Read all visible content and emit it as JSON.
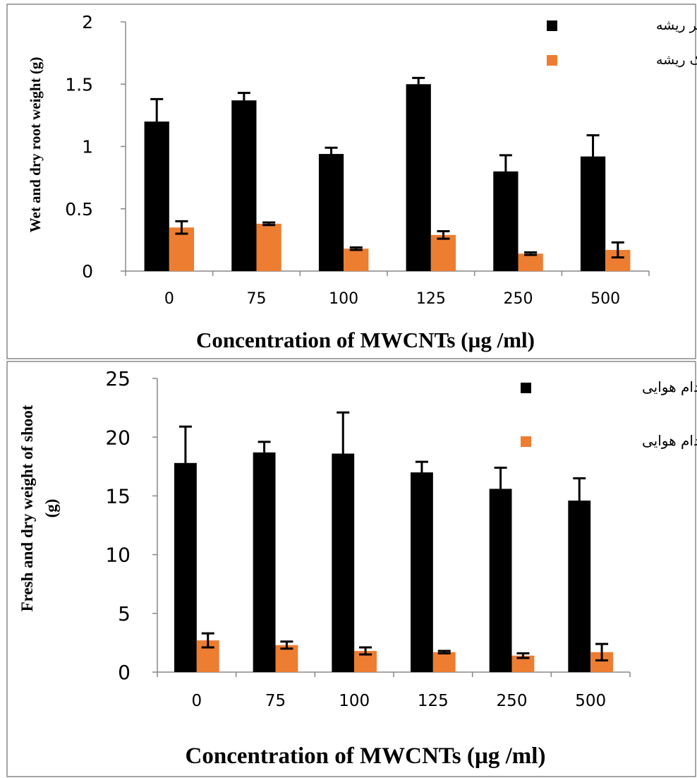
{
  "chart_data": [
    {
      "type": "bar",
      "categories": [
        "0",
        "75",
        "100",
        "125",
        "250",
        "500"
      ],
      "series": [
        {
          "name": "وزن تر ریشه",
          "values": [
            1.2,
            1.37,
            0.94,
            1.5,
            0.8,
            0.92
          ],
          "errors": [
            0.18,
            0.06,
            0.05,
            0.05,
            0.13,
            0.17
          ],
          "color": "#000000"
        },
        {
          "name": "وزن خشک ریشه",
          "values": [
            0.35,
            0.38,
            0.18,
            0.29,
            0.14,
            0.17
          ],
          "errors": [
            0.05,
            0.01,
            0.01,
            0.03,
            0.01,
            0.06
          ],
          "color": "#ed7d31"
        }
      ],
      "xlabel": "Concentration of MWCNTs  (µg /ml)",
      "ylabel": "Wet and dry root weight (g)",
      "yticks": [
        "0",
        "0.5",
        "1",
        "1.5",
        "2"
      ],
      "ylim": [
        0,
        2
      ],
      "legend_position": "top-right",
      "grid": false
    },
    {
      "type": "bar",
      "categories": [
        "0",
        "75",
        "100",
        "125",
        "250",
        "500"
      ],
      "series": [
        {
          "name": "وزن تر اندام هوایی",
          "values": [
            17.8,
            18.7,
            18.6,
            17.0,
            15.6,
            14.6
          ],
          "errors": [
            3.1,
            0.9,
            3.5,
            0.9,
            1.8,
            1.9
          ],
          "color": "#000000"
        },
        {
          "name": "وزن خشک اندام هوایی",
          "values": [
            2.7,
            2.3,
            1.8,
            1.7,
            1.4,
            1.7
          ],
          "errors": [
            0.6,
            0.3,
            0.3,
            0.1,
            0.2,
            0.7
          ],
          "color": "#ed7d31"
        }
      ],
      "xlabel": "Concentration of MWCNTs  (µg /ml)",
      "ylabel": [
        "Fresh and dry weight of shoot",
        "(g)"
      ],
      "yticks": [
        "0",
        "5",
        "10",
        "15",
        "20",
        "25"
      ],
      "ylim": [
        0,
        25
      ],
      "legend_position": "top-right",
      "grid": false
    }
  ]
}
